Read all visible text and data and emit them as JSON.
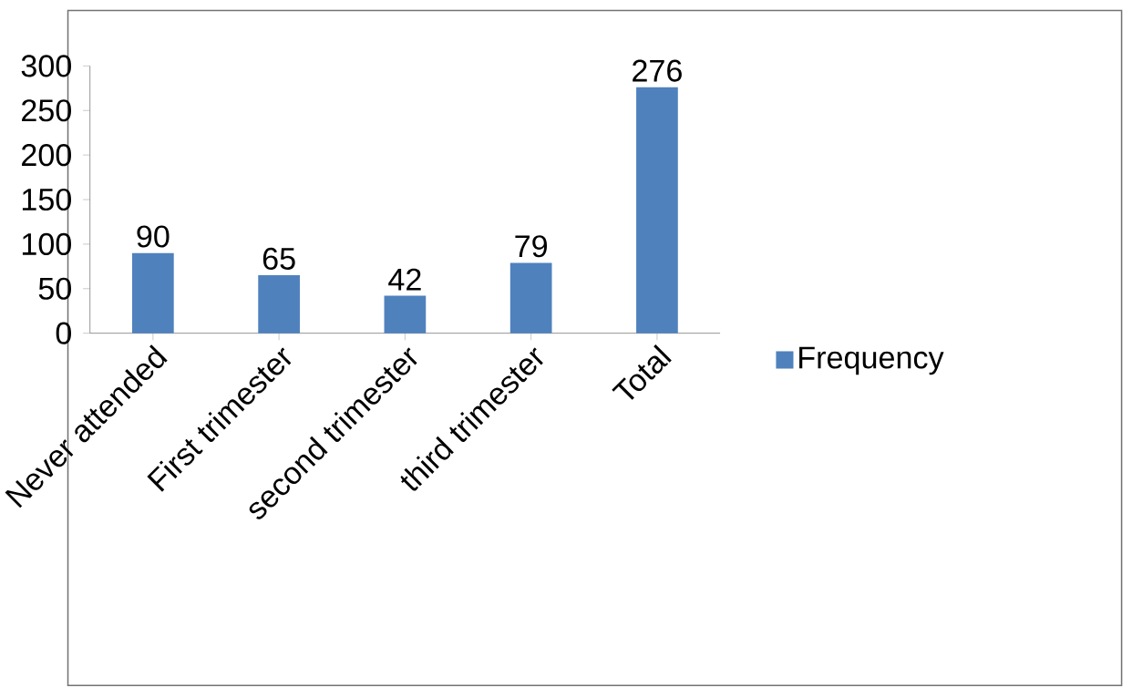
{
  "chart_data": {
    "type": "bar",
    "categories": [
      "Never attended",
      "First trimester",
      "second trimester",
      "third trimester",
      "Total"
    ],
    "series": [
      {
        "name": "Frequency",
        "color": "#4f81bd",
        "values": [
          90,
          65,
          42,
          79,
          276
        ]
      }
    ],
    "ylim": [
      0,
      300
    ],
    "yticks": [
      0,
      50,
      100,
      150,
      200,
      250,
      300
    ],
    "data_labels": true,
    "legend": "right"
  }
}
